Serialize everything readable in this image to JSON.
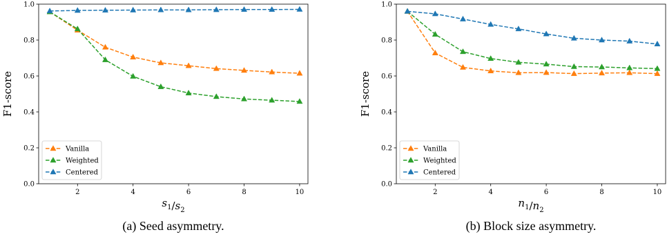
{
  "chart_data": [
    {
      "type": "line",
      "caption": "(a) Seed asymmetry.",
      "xlabel": "s1/s2",
      "ylabel": "F1-score",
      "xlim": [
        0.6,
        10.3
      ],
      "ylim": [
        0.0,
        1.0
      ],
      "xticks": [
        2,
        4,
        6,
        8,
        10
      ],
      "yticks": [
        0.0,
        0.2,
        0.4,
        0.6,
        0.8,
        1.0
      ],
      "legend_position": "lower-left",
      "x": [
        1,
        2,
        3,
        4,
        5,
        6,
        7,
        8,
        9,
        10
      ],
      "series": [
        {
          "name": "Vanilla",
          "color": "#ff7f0e",
          "values": [
            0.957,
            0.855,
            0.76,
            0.705,
            0.673,
            0.657,
            0.641,
            0.631,
            0.622,
            0.615
          ]
        },
        {
          "name": "Weighted",
          "color": "#2ca02c",
          "values": [
            0.957,
            0.862,
            0.69,
            0.598,
            0.54,
            0.505,
            0.485,
            0.472,
            0.465,
            0.458
          ]
        },
        {
          "name": "Centered",
          "color": "#1f77b4",
          "values": [
            0.962,
            0.965,
            0.966,
            0.967,
            0.968,
            0.968,
            0.969,
            0.97,
            0.97,
            0.971
          ]
        }
      ]
    },
    {
      "type": "line",
      "caption": "(b) Block size asymmetry.",
      "xlabel": "n1/n2",
      "ylabel": "F1-score",
      "xlim": [
        0.6,
        10.3
      ],
      "ylim": [
        0.0,
        1.0
      ],
      "xticks": [
        2,
        4,
        6,
        8,
        10
      ],
      "yticks": [
        0.0,
        0.2,
        0.4,
        0.6,
        0.8,
        1.0
      ],
      "legend_position": "lower-left",
      "x": [
        1,
        2,
        3,
        4,
        5,
        6,
        7,
        8,
        9,
        10
      ],
      "series": [
        {
          "name": "Vanilla",
          "color": "#ff7f0e",
          "values": [
            0.96,
            0.728,
            0.648,
            0.628,
            0.618,
            0.619,
            0.613,
            0.616,
            0.618,
            0.613
          ]
        },
        {
          "name": "Weighted",
          "color": "#2ca02c",
          "values": [
            0.96,
            0.832,
            0.735,
            0.697,
            0.676,
            0.666,
            0.652,
            0.65,
            0.645,
            0.641
          ]
        },
        {
          "name": "Centered",
          "color": "#1f77b4",
          "values": [
            0.96,
            0.946,
            0.917,
            0.887,
            0.862,
            0.834,
            0.81,
            0.8,
            0.794,
            0.778
          ]
        }
      ]
    }
  ]
}
